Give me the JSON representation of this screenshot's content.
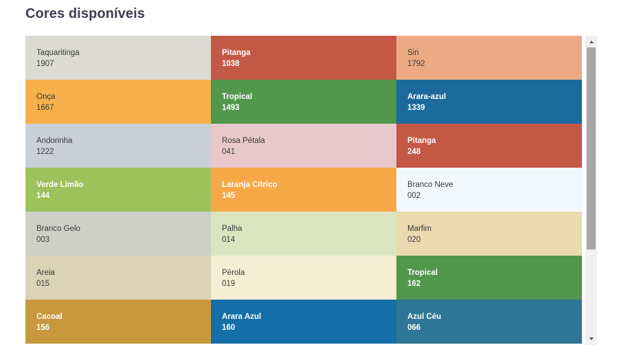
{
  "page": {
    "title": "Cores disponíveis"
  },
  "colors": [
    {
      "name": "Taquaritinga",
      "code": "1907",
      "bg": "#dcdbd3",
      "fg": "#3a3a3a",
      "dark": false
    },
    {
      "name": "Pitanga",
      "code": "1038",
      "bg": "#c45846",
      "fg": "#ffffff",
      "dark": true
    },
    {
      "name": "Siri",
      "code": "1792",
      "bg": "#ecaa84",
      "fg": "#3a3a3a",
      "dark": false
    },
    {
      "name": "Onça",
      "code": "1667",
      "bg": "#f6b14c",
      "fg": "#3a3a3a",
      "dark": false
    },
    {
      "name": "Tropical",
      "code": "1493",
      "bg": "#52974c",
      "fg": "#ffffff",
      "dark": true
    },
    {
      "name": "Arara-azul",
      "code": "1339",
      "bg": "#1c6a9c",
      "fg": "#ffffff",
      "dark": true
    },
    {
      "name": "Andorinha",
      "code": "1222",
      "bg": "#cbcfd7",
      "fg": "#3a3a3a",
      "dark": false
    },
    {
      "name": "Rosa Pétala",
      "code": "041",
      "bg": "#e8c8ca",
      "fg": "#3a3a3a",
      "dark": false
    },
    {
      "name": "Pitanga",
      "code": "248",
      "bg": "#c45846",
      "fg": "#ffffff",
      "dark": true
    },
    {
      "name": "Verde Limão",
      "code": "144",
      "bg": "#9dc15b",
      "fg": "#ffffff",
      "dark": true
    },
    {
      "name": "Laranja Cítrico",
      "code": "145",
      "bg": "#f6a746",
      "fg": "#ffffff",
      "dark": true
    },
    {
      "name": "Branco Neve",
      "code": "002",
      "bg": "#f2f7fd",
      "fg": "#3a3a3a",
      "dark": false
    },
    {
      "name": "Branco Gelo",
      "code": "003",
      "bg": "#cfd1c9",
      "fg": "#3a3a3a",
      "dark": false
    },
    {
      "name": "Palha",
      "code": "014",
      "bg": "#dae5bf",
      "fg": "#3a3a3a",
      "dark": false
    },
    {
      "name": "Marfim",
      "code": "020",
      "bg": "#ebdaaf",
      "fg": "#3a3a3a",
      "dark": false
    },
    {
      "name": "Areia",
      "code": "015",
      "bg": "#dcd2b6",
      "fg": "#3a3a3a",
      "dark": false
    },
    {
      "name": "Pérola",
      "code": "019",
      "bg": "#f5eed3",
      "fg": "#3a3a3a",
      "dark": false
    },
    {
      "name": "Tropical",
      "code": "162",
      "bg": "#52974c",
      "fg": "#ffffff",
      "dark": true
    },
    {
      "name": "Cacoal",
      "code": "156",
      "bg": "#c9983e",
      "fg": "#ffffff",
      "dark": true
    },
    {
      "name": "Arara Azul",
      "code": "160",
      "bg": "#146ea8",
      "fg": "#ffffff",
      "dark": true
    },
    {
      "name": "Azul Céu",
      "code": "066",
      "bg": "#2d7696",
      "fg": "#ffffff",
      "dark": true
    }
  ],
  "scrollbar": {
    "up_icon": "triangle-up",
    "down_icon": "triangle-down"
  }
}
